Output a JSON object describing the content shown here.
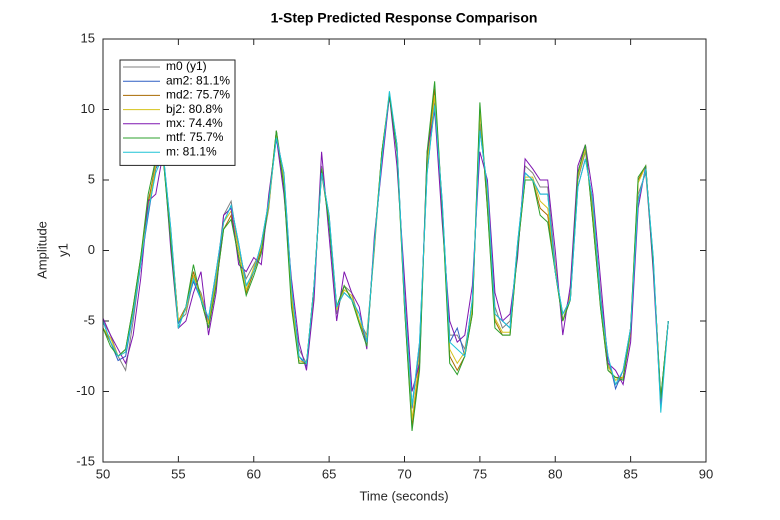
{
  "chart_data": {
    "type": "line",
    "title": "1-Step Predicted Response Comparison",
    "xlabel": "Time (seconds)",
    "ylabel": "Amplitude",
    "ylabel2": "y1",
    "xlim": [
      50,
      90
    ],
    "ylim": [
      -15,
      15
    ],
    "xticks": [
      50,
      55,
      60,
      65,
      70,
      75,
      80,
      85,
      90
    ],
    "yticks": [
      -15,
      -10,
      -5,
      0,
      5,
      10,
      15
    ],
    "grid": false,
    "legend": "top-left",
    "x": [
      50,
      50.5,
      51,
      51.5,
      52,
      52.5,
      53,
      53.5,
      54,
      54.5,
      55,
      55.5,
      56,
      56.5,
      57,
      57.5,
      58,
      58.5,
      59,
      59.5,
      60,
      60.5,
      61,
      61.5,
      62,
      62.5,
      63,
      63.5,
      64,
      64.5,
      65,
      65.5,
      66,
      66.5,
      67,
      67.5,
      68,
      68.5,
      69,
      69.5,
      70,
      70.5,
      71,
      71.5,
      72,
      72.5,
      73,
      73.5,
      74,
      74.5,
      75,
      75.5,
      76,
      76.5,
      77,
      77.5,
      78,
      78.5,
      79,
      79.5,
      80,
      80.5,
      81,
      81.5,
      82,
      82.5,
      83,
      83.5,
      84,
      84.5,
      85,
      85.5,
      86,
      86.5,
      87,
      87.5
    ],
    "series": [
      {
        "name": "m0 (y1)",
        "color": "#808080",
        "values": [
          -5,
          -6,
          -7.5,
          -8.5,
          -5,
          -1,
          3,
          6.5,
          6.5,
          1,
          -5,
          -4.5,
          -2,
          -3,
          -5,
          -2,
          2.5,
          3.5,
          0,
          -2,
          -1,
          0,
          3,
          8.5,
          5,
          -3,
          -7,
          -8,
          -3,
          6,
          2,
          -4.5,
          -2.5,
          -3,
          -5,
          -6,
          0,
          7,
          11,
          7,
          -3,
          -11,
          -7,
          6,
          10,
          3,
          -6,
          -6,
          -7,
          -4,
          9,
          4,
          -4,
          -5.5,
          -5,
          0,
          6,
          5.5,
          4.5,
          4.5,
          -1,
          -5,
          -3,
          5,
          7,
          3,
          -3,
          -8,
          -9.5,
          -9,
          -6,
          4,
          5.5,
          -1,
          -10.5,
          -5
        ]
      },
      {
        "name": "am2: 81.1%",
        "color": "#2f5fc4",
        "values": [
          -5,
          -6.5,
          -7.8,
          -7.5,
          -4.5,
          -1,
          2.5,
          5.8,
          6.8,
          1.5,
          -5.2,
          -4,
          -2.2,
          -3.5,
          -4.8,
          -1.5,
          2,
          3.2,
          0.5,
          -2.5,
          -1.5,
          0.5,
          3.5,
          8,
          5.5,
          -2.5,
          -7.5,
          -8.2,
          -2.5,
          5.5,
          2.5,
          -4,
          -3,
          -3.5,
          -4.5,
          -6.5,
          0.5,
          6.5,
          11,
          7.5,
          -3.5,
          -11.2,
          -6.5,
          5.5,
          10.5,
          3.5,
          -6.5,
          -5.5,
          -7.5,
          -3.5,
          8.5,
          4.5,
          -4.5,
          -5,
          -5.5,
          0.5,
          5.5,
          5,
          4,
          4,
          -1.5,
          -4.5,
          -3.5,
          4.5,
          6.5,
          3.5,
          -3.5,
          -7.5,
          -9.8,
          -8.5,
          -5.5,
          3.5,
          5.8,
          -0.5,
          -11,
          -5
        ]
      },
      {
        "name": "md2: 75.7%",
        "color": "#a86a00",
        "values": [
          -5.5,
          -6.5,
          -7.5,
          -7,
          -4,
          -0.5,
          3.5,
          6,
          6.5,
          1,
          -5,
          -4,
          -1.5,
          -3.5,
          -5.5,
          -2.5,
          1.5,
          2.5,
          -0.5,
          -3,
          -1.5,
          0,
          3.5,
          8.5,
          4.5,
          -3.5,
          -8,
          -8,
          -2.5,
          5.5,
          2,
          -4,
          -2.5,
          -3.5,
          -5,
          -6.5,
          0.5,
          7,
          11,
          7.5,
          -4,
          -12.5,
          -8,
          6.5,
          11.5,
          3,
          -7.5,
          -8.5,
          -7.5,
          -4.5,
          10,
          3,
          -5,
          -6,
          -6,
          0,
          5,
          5,
          3,
          2.5,
          -1.5,
          -5,
          -3.5,
          5.5,
          7.5,
          2,
          -4,
          -8.5,
          -9,
          -9,
          -5.5,
          5,
          6,
          -1,
          -10.5,
          -5
        ]
      },
      {
        "name": "bj2: 80.8%",
        "color": "#d4c21a",
        "values": [
          -5.5,
          -6.2,
          -7.5,
          -7.2,
          -4.2,
          -0.8,
          3,
          6,
          6.6,
          1.2,
          -5,
          -4.2,
          -1.8,
          -3.2,
          -5.2,
          -2.2,
          2,
          2.8,
          0,
          -2.8,
          -1.2,
          0.2,
          3.2,
          8.2,
          5,
          -3.2,
          -7.8,
          -8,
          -2.8,
          5.8,
          2.2,
          -4.2,
          -2.8,
          -3.2,
          -5,
          -6.2,
          0.2,
          7,
          11.2,
          7.2,
          -3.8,
          -12,
          -7.5,
          6,
          11,
          3,
          -7,
          -8,
          -7.2,
          -4,
          9.8,
          3.5,
          -4.8,
          -5.8,
          -5.8,
          0.2,
          5.2,
          5.2,
          3.5,
          3,
          -1.2,
          -5,
          -3.2,
          5.2,
          7.2,
          2.5,
          -3.8,
          -8.2,
          -9.2,
          -9,
          -5.8,
          4.8,
          6,
          -1,
          -10.8,
          -5
        ]
      },
      {
        "name": "mx: 74.4%",
        "color": "#7f16b0",
        "values": [
          -4.8,
          -6,
          -7,
          -8,
          -6,
          -2,
          3.5,
          4,
          7,
          0,
          -5.5,
          -5,
          -3,
          -1.5,
          -6,
          -3,
          2.5,
          3,
          -1,
          -1.5,
          -0.5,
          -1,
          4,
          8,
          4,
          -2,
          -6.5,
          -8.5,
          -3.5,
          7,
          1,
          -5,
          -1.5,
          -3,
          -4,
          -7,
          1,
          6,
          11,
          6,
          -2,
          -10,
          -8,
          7,
          10,
          2,
          -5,
          -6.5,
          -6,
          -2.5,
          7,
          5,
          -3,
          -5,
          -4.5,
          -0.5,
          6.5,
          5.8,
          5,
          5,
          0,
          -6,
          -2.5,
          6,
          7.5,
          4,
          -2,
          -8,
          -8.5,
          -9.5,
          -6.5,
          3,
          6,
          -1.5,
          -11,
          -5
        ]
      },
      {
        "name": "mtf: 75.7%",
        "color": "#2ca02c",
        "values": [
          -5.5,
          -6.8,
          -7.5,
          -7,
          -4,
          -0.5,
          4,
          6.5,
          6.5,
          0.5,
          -5.5,
          -4,
          -1,
          -3.5,
          -5.5,
          -2.5,
          1.5,
          2.2,
          -0.5,
          -3.2,
          -1.8,
          -0.2,
          3.5,
          8.5,
          4.5,
          -4,
          -8,
          -8,
          -2.5,
          5.8,
          1.8,
          -4,
          -2.5,
          -3.5,
          -5.2,
          -6.8,
          0.5,
          7,
          11,
          7,
          -4,
          -12.8,
          -8.5,
          7,
          12,
          3,
          -8,
          -8.8,
          -7.5,
          -4.5,
          10.5,
          3,
          -5.5,
          -6,
          -6,
          0,
          5,
          5,
          2.5,
          2,
          -1.5,
          -5,
          -3.5,
          5.5,
          7.5,
          2,
          -4,
          -8.5,
          -9,
          -9.2,
          -5.5,
          5.2,
          6,
          -1,
          -10.5,
          -5
        ]
      },
      {
        "name": "m: 81.1%",
        "color": "#1fc3d6",
        "values": [
          -5,
          -6.5,
          -7.5,
          -7.2,
          -4.5,
          -1,
          2.8,
          5.5,
          6.8,
          1.5,
          -5.5,
          -4,
          -2,
          -3.5,
          -4.8,
          -1.5,
          2,
          3.2,
          0.5,
          -2.5,
          -1.5,
          0.5,
          3.5,
          8,
          5.5,
          -2.5,
          -7.5,
          -8,
          -2.5,
          5.5,
          2.5,
          -4,
          -3,
          -3.5,
          -4.5,
          -6.5,
          0.5,
          6.5,
          11.3,
          7.5,
          -3.5,
          -11,
          -6.5,
          5.5,
          10.3,
          3.5,
          -6.5,
          -7,
          -7.5,
          -3.5,
          8.5,
          4.5,
          -4.5,
          -5,
          -5.5,
          0.5,
          5.5,
          5,
          4,
          4,
          -1.5,
          -4.5,
          -3.5,
          4.5,
          6.5,
          3.5,
          -3.5,
          -7.5,
          -9.5,
          -8.5,
          -5.5,
          3.5,
          5.8,
          -0.5,
          -11.5,
          -5
        ]
      }
    ]
  }
}
